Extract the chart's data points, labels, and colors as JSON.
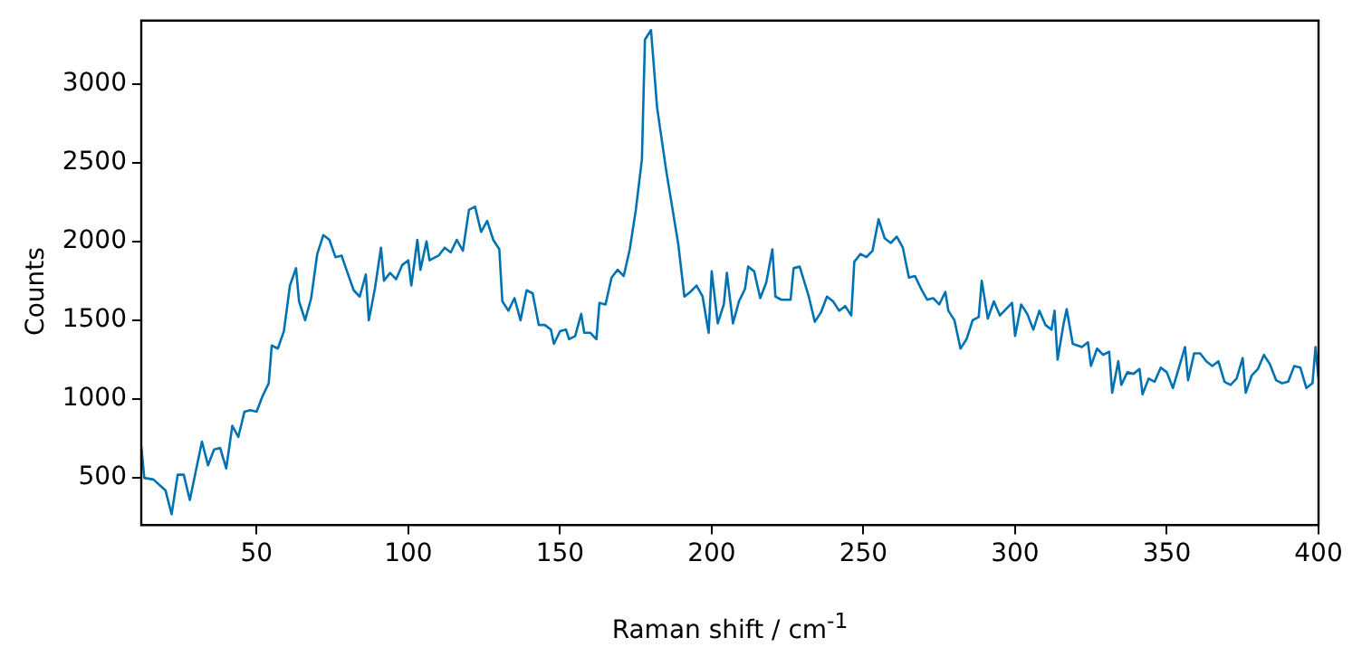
{
  "chart_data": {
    "type": "line",
    "xlabel": "Raman shift / cm$^{-1}$",
    "ylabel": "Counts",
    "xlim": [
      12,
      400
    ],
    "ylim": [
      200,
      3400
    ],
    "xticks": [
      50,
      100,
      150,
      200,
      250,
      300,
      350,
      400
    ],
    "yticks": [
      500,
      1000,
      1500,
      2000,
      2500,
      3000
    ],
    "grid": false,
    "legend": false,
    "marker": "none",
    "line_style": "solid",
    "series": [
      {
        "color": "#0072b2",
        "x": [
          12,
          13,
          16,
          20,
          22,
          24,
          26,
          28,
          32,
          34,
          36,
          38,
          40,
          42,
          44,
          46,
          48,
          50,
          52,
          54,
          55,
          57,
          59,
          61,
          63,
          64,
          66,
          68,
          70,
          72,
          74,
          76,
          78,
          80,
          82,
          84,
          86,
          87,
          89,
          91,
          92,
          94,
          96,
          98,
          100,
          101,
          103,
          104,
          106,
          107,
          110,
          112,
          114,
          116,
          118,
          120,
          122,
          124,
          126,
          128,
          130,
          131,
          133,
          135,
          137,
          139,
          141,
          143,
          145,
          147,
          148,
          150,
          152,
          153,
          155,
          157,
          158,
          160,
          162,
          163,
          165,
          167,
          169,
          171,
          173,
          175,
          177,
          178,
          180,
          182,
          185,
          189,
          191,
          193,
          195,
          197,
          199,
          200,
          202,
          204,
          205,
          207,
          209,
          211,
          212,
          214,
          216,
          218,
          220,
          221,
          223,
          226,
          227,
          229,
          232,
          234,
          236,
          238,
          240,
          242,
          244,
          246,
          247,
          249,
          251,
          253,
          255,
          257,
          259,
          261,
          263,
          265,
          267,
          269,
          271,
          273,
          275,
          277,
          278,
          280,
          282,
          284,
          286,
          288,
          289,
          291,
          293,
          295,
          297,
          299,
          300,
          302,
          304,
          306,
          308,
          310,
          312,
          313,
          314,
          316,
          317,
          319,
          322,
          324,
          325,
          327,
          329,
          331,
          332,
          334,
          335,
          337,
          339,
          341,
          342,
          344,
          346,
          348,
          350,
          352,
          354,
          356,
          357,
          359,
          361,
          363,
          365,
          367,
          369,
          371,
          373,
          375,
          376,
          378,
          380,
          382,
          384,
          386,
          388,
          390,
          392,
          394,
          396,
          398,
          399,
          400
        ],
        "values": [
          700,
          500,
          490,
          420,
          270,
          520,
          520,
          360,
          730,
          580,
          680,
          690,
          560,
          830,
          760,
          920,
          930,
          920,
          1020,
          1100,
          1340,
          1320,
          1430,
          1720,
          1830,
          1620,
          1500,
          1640,
          1920,
          2040,
          2010,
          1900,
          1910,
          1800,
          1690,
          1650,
          1790,
          1500,
          1700,
          1960,
          1750,
          1800,
          1760,
          1850,
          1880,
          1720,
          2010,
          1820,
          2000,
          1880,
          1910,
          1960,
          1930,
          2010,
          1940,
          2200,
          2220,
          2060,
          2130,
          2010,
          1950,
          1620,
          1560,
          1640,
          1500,
          1690,
          1670,
          1470,
          1470,
          1440,
          1350,
          1430,
          1440,
          1380,
          1400,
          1540,
          1420,
          1420,
          1380,
          1610,
          1600,
          1770,
          1820,
          1780,
          1950,
          2200,
          2520,
          3280,
          3340,
          2850,
          2450,
          1980,
          1650,
          1680,
          1720,
          1650,
          1420,
          1810,
          1480,
          1600,
          1800,
          1480,
          1620,
          1700,
          1840,
          1810,
          1640,
          1740,
          1950,
          1650,
          1630,
          1630,
          1830,
          1840,
          1650,
          1490,
          1550,
          1650,
          1620,
          1560,
          1590,
          1530,
          1870,
          1920,
          1900,
          1940,
          2140,
          2020,
          1990,
          2030,
          1960,
          1770,
          1780,
          1700,
          1630,
          1640,
          1600,
          1680,
          1560,
          1500,
          1320,
          1380,
          1500,
          1520,
          1750,
          1510,
          1620,
          1530,
          1570,
          1610,
          1400,
          1600,
          1540,
          1440,
          1560,
          1470,
          1440,
          1560,
          1250,
          1480,
          1570,
          1350,
          1330,
          1360,
          1210,
          1320,
          1280,
          1300,
          1040,
          1240,
          1090,
          1170,
          1160,
          1190,
          1030,
          1130,
          1110,
          1200,
          1170,
          1070,
          1200,
          1330,
          1120,
          1290,
          1290,
          1240,
          1210,
          1240,
          1110,
          1090,
          1130,
          1260,
          1040,
          1150,
          1190,
          1280,
          1220,
          1120,
          1100,
          1110,
          1210,
          1200,
          1070,
          1100,
          1330,
          1130
        ]
      }
    ]
  }
}
